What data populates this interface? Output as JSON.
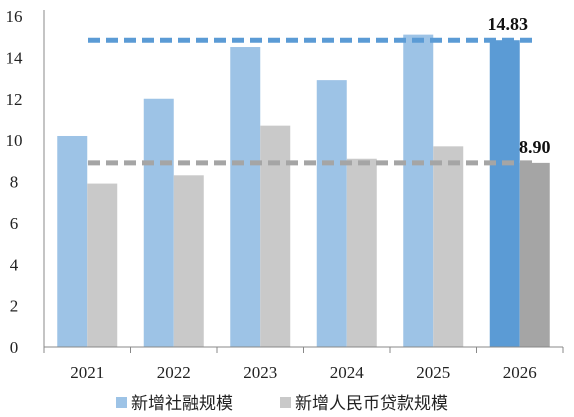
{
  "chart_data": {
    "type": "bar",
    "categories": [
      "2021",
      "2022",
      "2023",
      "2024",
      "2025",
      "2026"
    ],
    "series": [
      {
        "name": "新增社融规模",
        "values": [
          10.2,
          12.0,
          14.5,
          12.9,
          15.1,
          14.83
        ],
        "color": "#9DC3E6",
        "highlight_color": "#5B9BD5"
      },
      {
        "name": "新增人民币贷款规模",
        "values": [
          7.9,
          8.3,
          10.7,
          9.1,
          9.7,
          8.9
        ],
        "color": "#C9C9C9",
        "highlight_color": "#A5A5A5"
      }
    ],
    "reference_lines": [
      {
        "value": 14.83,
        "label": "14.83",
        "color": "#5B9BD5",
        "style": "dashed"
      },
      {
        "value": 8.9,
        "label": "8.90",
        "color": "#A5A5A5",
        "style": "dashed"
      }
    ],
    "highlight_category": "2026",
    "ylim": [
      0,
      16
    ],
    "yticks": [
      "0",
      "2",
      "4",
      "6",
      "8",
      "10",
      "12",
      "14",
      "16"
    ],
    "grid": false,
    "legend_position": "bottom",
    "title": "",
    "xlabel": "",
    "ylabel": ""
  }
}
